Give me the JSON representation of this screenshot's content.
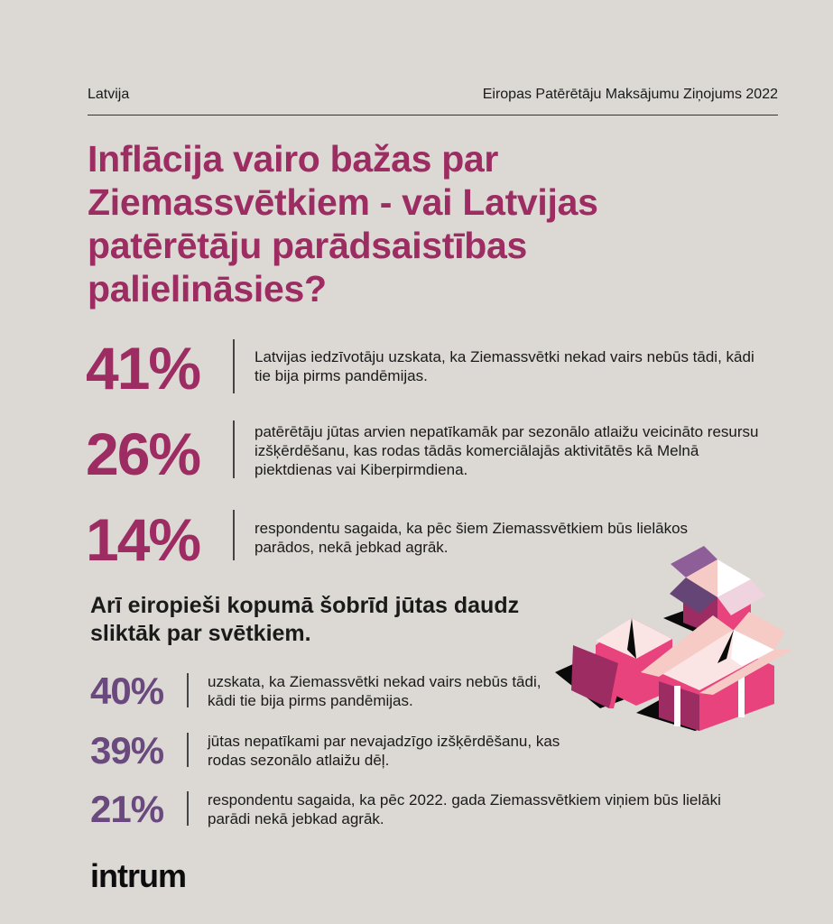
{
  "header": {
    "country": "Latvija",
    "report": "Eiropas Patērētāju Maksājumu Ziņojums 2022"
  },
  "title": "Inflācija vairo bažas par Ziemassvētkiem - vai Latvijas patērētāju parādsaistības palielināsies?",
  "latvia_stats": [
    {
      "value": "41%",
      "text": "Latvijas iedzīvotāju uzskata, ka Ziemassvētki nekad vairs nebūs tādi, kādi tie bija pirms pandēmijas."
    },
    {
      "value": "26%",
      "text": "patērētāju jūtas arvien nepatīkamāk par sezonālo atlaižu veicināto resursu izšķērdēšanu, kas rodas tādās komerciālajās aktivitātēs kā Melnā piektdienas vai Kiberpirmdiena."
    },
    {
      "value": "14%",
      "text": "respondentu sagaida, ka pēc šiem Ziemassvētkiem būs lielākos parādos, nekā jebkad agrāk."
    }
  ],
  "europe_heading": "Arī eiropieši kopumā šobrīd jūtas daudz sliktāk par svētkiem.",
  "europe_stats": [
    {
      "value": "40%",
      "text": "uzskata, ka Ziemassvētki nekad vairs nebūs tādi, kādi tie bija pirms pandēmijas."
    },
    {
      "value": "39%",
      "text": "jūtas nepatīkami par nevajadzīgo izšķērdēšanu, kas rodas sezonālo atlaižu dēļ."
    },
    {
      "value": "21%",
      "text": "respondentu sagaida, ka pēc 2022. gada Ziemassvētkiem viņiem būs lielāki parādi nekā jebkad agrāk."
    }
  ],
  "logo": "intrum",
  "colors": {
    "background": "#dcd9d4",
    "magenta": "#9c2c62",
    "purple": "#6a4a7e",
    "pink": "#e8437c"
  }
}
